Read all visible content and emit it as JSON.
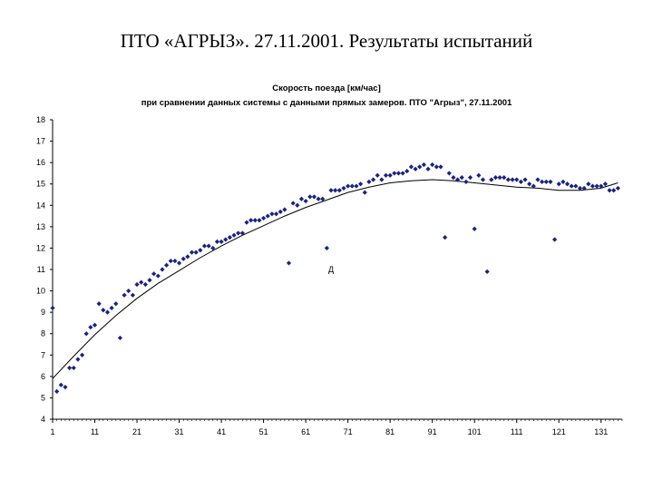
{
  "slide_title": "ПТО «АГРЫЗ». 27.11.2001. Результаты испытаний",
  "chart_data": {
    "type": "scatter",
    "title": "Скорость поезда [км/час]",
    "subtitle": "при сравнении данных системы с данными прямых замеров. ПТО \"Агрыз\", 27.11.2001",
    "xlim": [
      1,
      136
    ],
    "ylim": [
      4,
      18
    ],
    "x_ticks": [
      1,
      11,
      21,
      31,
      41,
      51,
      61,
      71,
      81,
      91,
      101,
      111,
      121,
      131
    ],
    "y_ticks": [
      4,
      5,
      6,
      7,
      8,
      9,
      10,
      11,
      12,
      13,
      14,
      15,
      16,
      17,
      18
    ],
    "grid": false,
    "annotation": {
      "text": "Д",
      "x": 67,
      "y": 11.0
    },
    "colors": {
      "points": "#1a237e",
      "trend": "#000000",
      "axis": "#000000"
    },
    "series": [
      {
        "kind": "points",
        "x": [
          1,
          2,
          3,
          4,
          5,
          6,
          7,
          8,
          9,
          10,
          11,
          12,
          13,
          14,
          15,
          16,
          17,
          18,
          19,
          20,
          21,
          22,
          23,
          24,
          25,
          26,
          27,
          28,
          29,
          30,
          31,
          32,
          33,
          34,
          35,
          36,
          37,
          38,
          39,
          40,
          41,
          42,
          43,
          44,
          45,
          46,
          47,
          48,
          49,
          50,
          51,
          52,
          53,
          54,
          55,
          56,
          57,
          58,
          59,
          60,
          61,
          62,
          63,
          64,
          65,
          66,
          67,
          68,
          69,
          70,
          71,
          72,
          73,
          74,
          75,
          76,
          77,
          78,
          79,
          80,
          81,
          82,
          83,
          84,
          85,
          86,
          87,
          88,
          89,
          90,
          91,
          92,
          93,
          94,
          95,
          96,
          97,
          98,
          99,
          100,
          101,
          102,
          103,
          104,
          105,
          106,
          107,
          108,
          109,
          110,
          111,
          112,
          113,
          114,
          115,
          116,
          117,
          118,
          119,
          120,
          121,
          122,
          123,
          124,
          125,
          126,
          127,
          128,
          129,
          130,
          131,
          132,
          133,
          134,
          135
        ],
        "y": [
          9.2,
          5.3,
          5.6,
          5.5,
          6.4,
          6.4,
          6.8,
          7.0,
          8.0,
          8.3,
          8.4,
          9.4,
          9.1,
          9.0,
          9.2,
          9.4,
          7.8,
          9.8,
          10.0,
          9.8,
          10.3,
          10.4,
          10.3,
          10.5,
          10.8,
          10.7,
          11.0,
          11.2,
          11.4,
          11.4,
          11.3,
          11.5,
          11.6,
          11.8,
          11.8,
          11.9,
          12.1,
          12.1,
          12.0,
          12.3,
          12.3,
          12.4,
          12.5,
          12.6,
          12.7,
          12.7,
          13.2,
          13.3,
          13.3,
          13.3,
          13.4,
          13.5,
          13.6,
          13.6,
          13.7,
          13.8,
          11.3,
          14.1,
          14.0,
          14.3,
          14.2,
          14.4,
          14.4,
          14.3,
          14.3,
          12.0,
          14.7,
          14.7,
          14.7,
          14.8,
          14.9,
          14.9,
          14.9,
          15.0,
          14.6,
          15.1,
          15.2,
          15.4,
          15.2,
          15.4,
          15.4,
          15.5,
          15.5,
          15.5,
          15.6,
          15.8,
          15.7,
          15.8,
          15.9,
          15.7,
          15.9,
          15.8,
          15.8,
          12.5,
          15.5,
          15.3,
          15.2,
          15.3,
          15.1,
          15.3,
          12.9,
          15.4,
          15.2,
          10.9,
          15.2,
          15.3,
          15.3,
          15.3,
          15.2,
          15.2,
          15.2,
          15.1,
          15.2,
          15.0,
          14.9,
          15.2,
          15.1,
          15.1,
          15.1,
          12.4,
          15.0,
          15.1,
          15.0,
          14.9,
          14.9,
          14.8,
          14.8,
          15.0,
          14.9,
          14.9,
          14.9,
          15.0,
          14.7,
          14.7,
          14.8
        ]
      },
      {
        "kind": "trendline",
        "x": [
          1,
          6,
          11,
          16,
          21,
          26,
          31,
          36,
          41,
          46,
          51,
          56,
          61,
          66,
          71,
          76,
          81,
          86,
          91,
          96,
          101,
          106,
          111,
          116,
          121,
          126,
          131,
          135
        ],
        "y": [
          5.9,
          6.95,
          7.95,
          8.85,
          9.65,
          10.35,
          10.95,
          11.55,
          12.1,
          12.6,
          13.05,
          13.5,
          13.9,
          14.25,
          14.6,
          14.85,
          15.05,
          15.15,
          15.2,
          15.15,
          15.05,
          14.95,
          14.85,
          14.8,
          14.7,
          14.7,
          14.8,
          15.05
        ]
      }
    ]
  }
}
